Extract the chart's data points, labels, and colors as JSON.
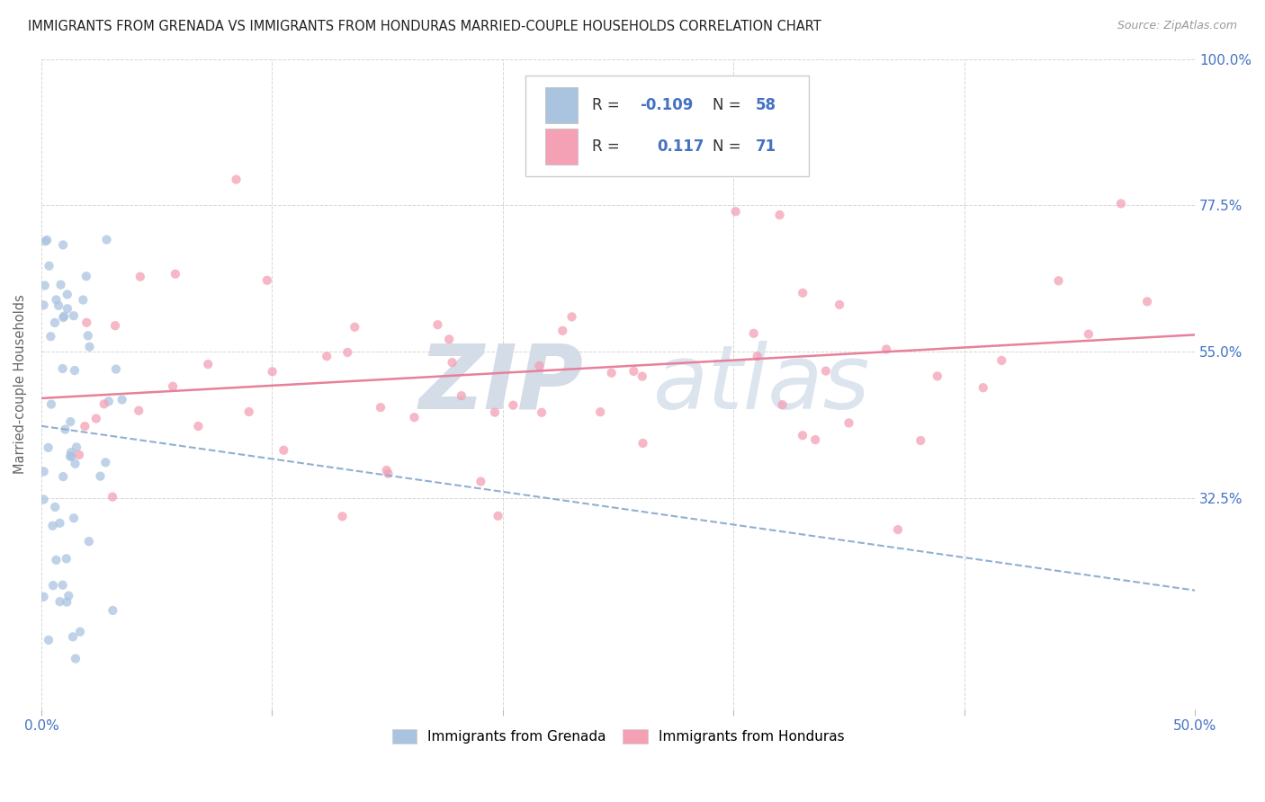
{
  "title": "IMMIGRANTS FROM GRENADA VS IMMIGRANTS FROM HONDURAS MARRIED-COUPLE HOUSEHOLDS CORRELATION CHART",
  "source": "Source: ZipAtlas.com",
  "ylabel": "Married-couple Households",
  "xlim": [
    0.0,
    0.5
  ],
  "ylim": [
    0.0,
    1.0
  ],
  "grenada_color": "#aac4e0",
  "honduras_color": "#f4a0b5",
  "grenada_R": -0.109,
  "grenada_N": 58,
  "honduras_R": 0.117,
  "honduras_N": 71,
  "grenada_line_color": "#90b0d0",
  "honduras_line_color": "#e8809a",
  "background_color": "#ffffff",
  "grid_color": "#cccccc",
  "title_color": "#333333",
  "axis_label_color": "#666666",
  "right_tick_color": "#4472c4",
  "bottom_tick_color": "#4472c4",
  "legend_grenada_label": "Immigrants from Grenada",
  "legend_honduras_label": "Immigrants from Honduras"
}
